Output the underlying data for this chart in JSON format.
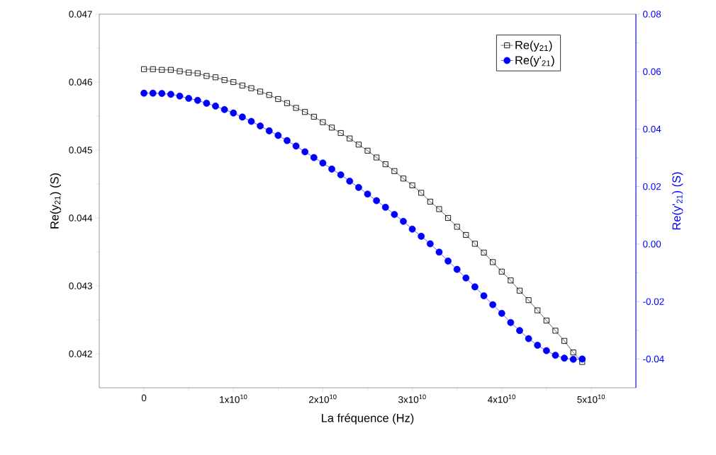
{
  "chart_data": {
    "type": "line",
    "xlabel": "La fréquence (Hz)",
    "ylabel": "Re(y$_{21}$) (S)",
    "y2label": "Re(y'$_{21}$) (S)",
    "x": [
      0,
      1000000000.0,
      2000000000.0,
      3000000000.0,
      4000000000.0,
      5000000000.0,
      6000000000.0,
      7000000000.0,
      8000000000.0,
      9000000000.0,
      10000000000.0,
      11000000000.0,
      12000000000.0,
      13000000000.0,
      14000000000.0,
      15000000000.0,
      16000000000.0,
      17000000000.0,
      18000000000.0,
      19000000000.0,
      20000000000.0,
      21000000000.0,
      22000000000.0,
      23000000000.0,
      24000000000.0,
      25000000000.0,
      26000000000.0,
      27000000000.0,
      28000000000.0,
      29000000000.0,
      30000000000.0,
      31000000000.0,
      32000000000.0,
      33000000000.0,
      34000000000.0,
      35000000000.0,
      36000000000.0,
      37000000000.0,
      38000000000.0,
      39000000000.0,
      40000000000.0,
      41000000000.0,
      42000000000.0,
      43000000000.0,
      44000000000.0,
      45000000000.0,
      46000000000.0,
      47000000000.0,
      48000000000.0,
      49000000000.0
    ],
    "series": [
      {
        "name": "Re(y$_{21}$)",
        "color": "#000000",
        "marker": "square",
        "values": [
          0.04619,
          0.04619,
          0.04618,
          0.04618,
          0.04616,
          0.04614,
          0.04613,
          0.04609,
          0.04607,
          0.04603,
          0.046,
          0.04595,
          0.04591,
          0.04586,
          0.04581,
          0.04575,
          0.04569,
          0.04562,
          0.04556,
          0.04549,
          0.04541,
          0.04533,
          0.04525,
          0.04517,
          0.04508,
          0.04499,
          0.04489,
          0.04479,
          0.04469,
          0.04458,
          0.04448,
          0.04437,
          0.04424,
          0.04413,
          0.044,
          0.04387,
          0.04375,
          0.04362,
          0.04349,
          0.04335,
          0.04321,
          0.04308,
          0.04293,
          0.04279,
          0.04264,
          0.04249,
          0.04234,
          0.04219,
          0.04202,
          0.04188
        ]
      },
      {
        "name": "Re(y'$_{21}$)",
        "color": "#0000ff",
        "marker": "circle",
        "axis": "y2",
        "values": [
          0.0525,
          0.0525,
          0.0524,
          0.0521,
          0.0515,
          0.0507,
          0.05,
          0.049,
          0.048,
          0.0468,
          0.0456,
          0.0442,
          0.0427,
          0.0411,
          0.0394,
          0.0378,
          0.036,
          0.0341,
          0.0321,
          0.0301,
          0.0282,
          0.0261,
          0.0241,
          0.0219,
          0.0197,
          0.0174,
          0.0151,
          0.0128,
          0.0103,
          0.0079,
          0.0052,
          0.0027,
          0.0001,
          -0.0028,
          -0.0059,
          -0.0088,
          -0.0118,
          -0.0149,
          -0.018,
          -0.0211,
          -0.0241,
          -0.0273,
          -0.0301,
          -0.0329,
          -0.0352,
          -0.0371,
          -0.0387,
          -0.0397,
          -0.0401,
          -0.04
        ]
      }
    ],
    "xlim": [
      -5000000000.0,
      55000000000.0
    ],
    "xticks": [
      0,
      {
        "value": 10000000000.0,
        "label": "1x10$^{10}$"
      },
      {
        "value": 20000000000.0,
        "label": "2x10$^{10}$"
      },
      {
        "value": 30000000000.0,
        "label": "3x10$^{10}$"
      },
      {
        "value": 40000000000.0,
        "label": "4x10$^{10}$"
      },
      {
        "value": 50000000000.0,
        "label": "5x10$^{10}$"
      }
    ],
    "ylim": [
      0.0415,
      0.047
    ],
    "yticks": [
      0.042,
      0.043,
      0.044,
      0.045,
      0.046,
      0.047
    ],
    "y2lim": [
      -0.05,
      0.08
    ],
    "y2ticks": [
      -0.04,
      -0.02,
      {
        "value": 0,
        "label": "0.00"
      },
      0.02,
      0.04,
      0.06,
      0.08
    ],
    "legend": "top right",
    "grid": false,
    "line_style": "solid"
  }
}
